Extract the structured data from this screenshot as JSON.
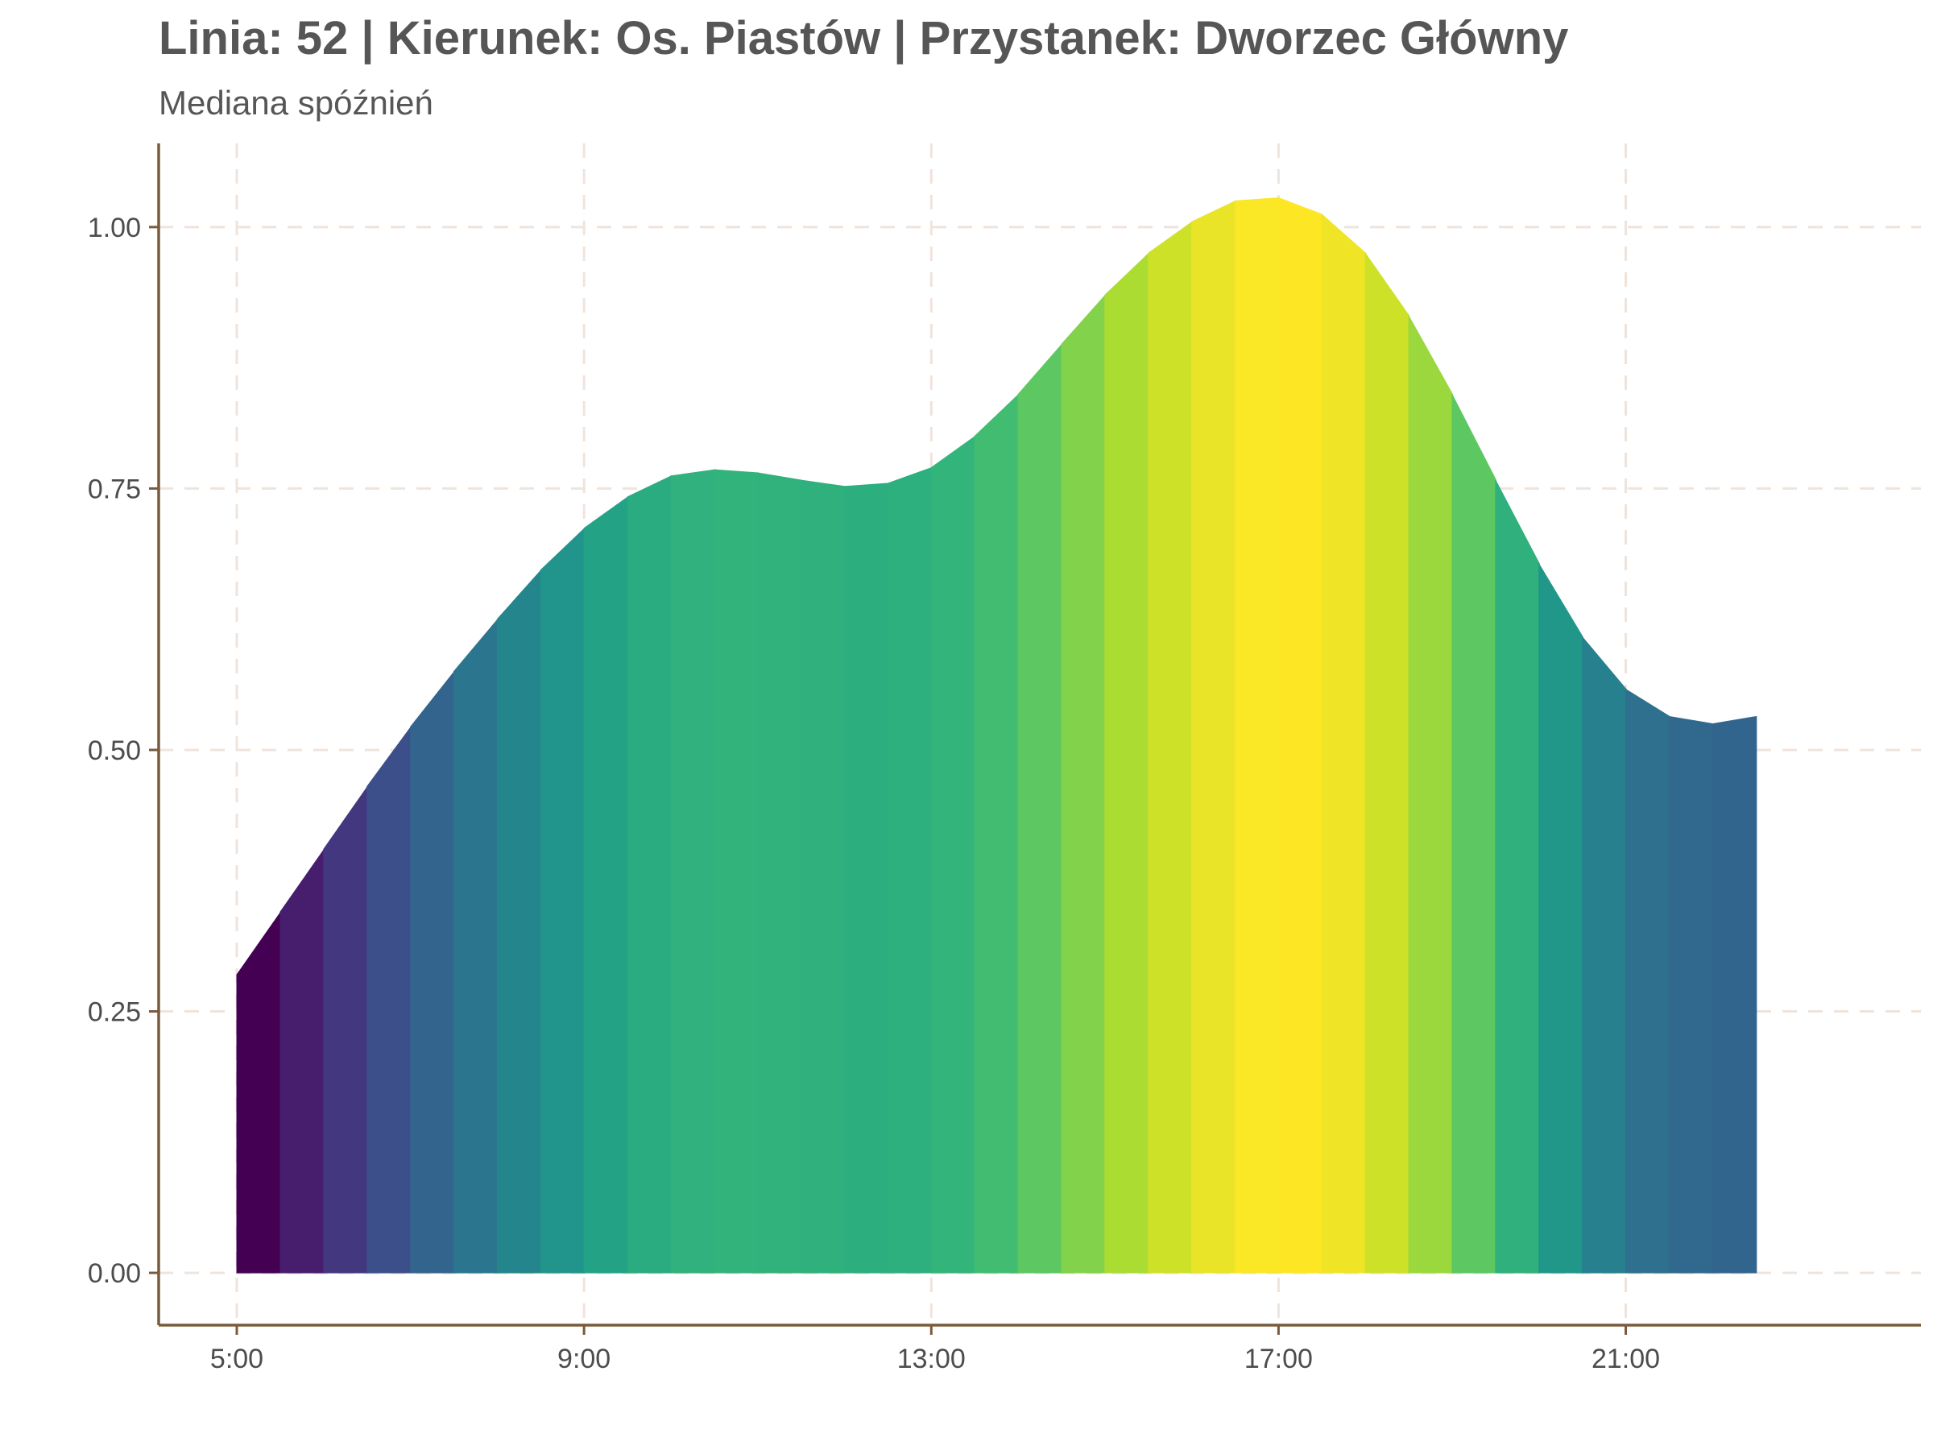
{
  "chart_data": {
    "type": "area",
    "title": "Linia: 52 | Kierunek: Os. Piastów | Przystanek: Dworzec Główny",
    "subtitle": "Mediana spóźnień",
    "xlabel": "",
    "ylabel": "",
    "x_unit": "hour",
    "xlim": [
      4.1,
      24.4
    ],
    "ylim": [
      -0.05,
      1.08
    ],
    "x_ticks": [
      5,
      9,
      13,
      17,
      21
    ],
    "x_tick_labels": [
      "5:00",
      "9:00",
      "13:00",
      "17:00",
      "21:00"
    ],
    "y_ticks": [
      0,
      0.25,
      0.5,
      0.75,
      1.0
    ],
    "y_tick_labels": [
      "0.00",
      "0.25",
      "0.50",
      "0.75",
      "1.00"
    ],
    "grid": true,
    "legend": "none",
    "fill": "viridis gradient by value",
    "x": [
      5.0,
      5.5,
      6.0,
      6.5,
      7.0,
      7.5,
      8.0,
      8.5,
      9.0,
      9.5,
      10.0,
      10.5,
      11.0,
      11.5,
      12.0,
      12.5,
      13.0,
      13.5,
      14.0,
      14.5,
      15.0,
      15.5,
      16.0,
      16.5,
      17.0,
      17.5,
      18.0,
      18.5,
      19.0,
      19.5,
      20.0,
      20.5,
      21.0,
      21.5,
      22.0,
      22.5
    ],
    "values": [
      0.285,
      0.345,
      0.405,
      0.465,
      0.522,
      0.575,
      0.625,
      0.672,
      0.712,
      0.742,
      0.762,
      0.768,
      0.765,
      0.758,
      0.752,
      0.755,
      0.77,
      0.8,
      0.84,
      0.888,
      0.935,
      0.975,
      1.005,
      1.025,
      1.028,
      1.012,
      0.975,
      0.915,
      0.84,
      0.758,
      0.678,
      0.608,
      0.558,
      0.532,
      0.525,
      0.532
    ]
  },
  "colors": {
    "axis": "#7a5a3c",
    "grid": "#efe4dc",
    "text": "#565656",
    "tick_text": "#4d4d4d",
    "palette": "viridis"
  }
}
